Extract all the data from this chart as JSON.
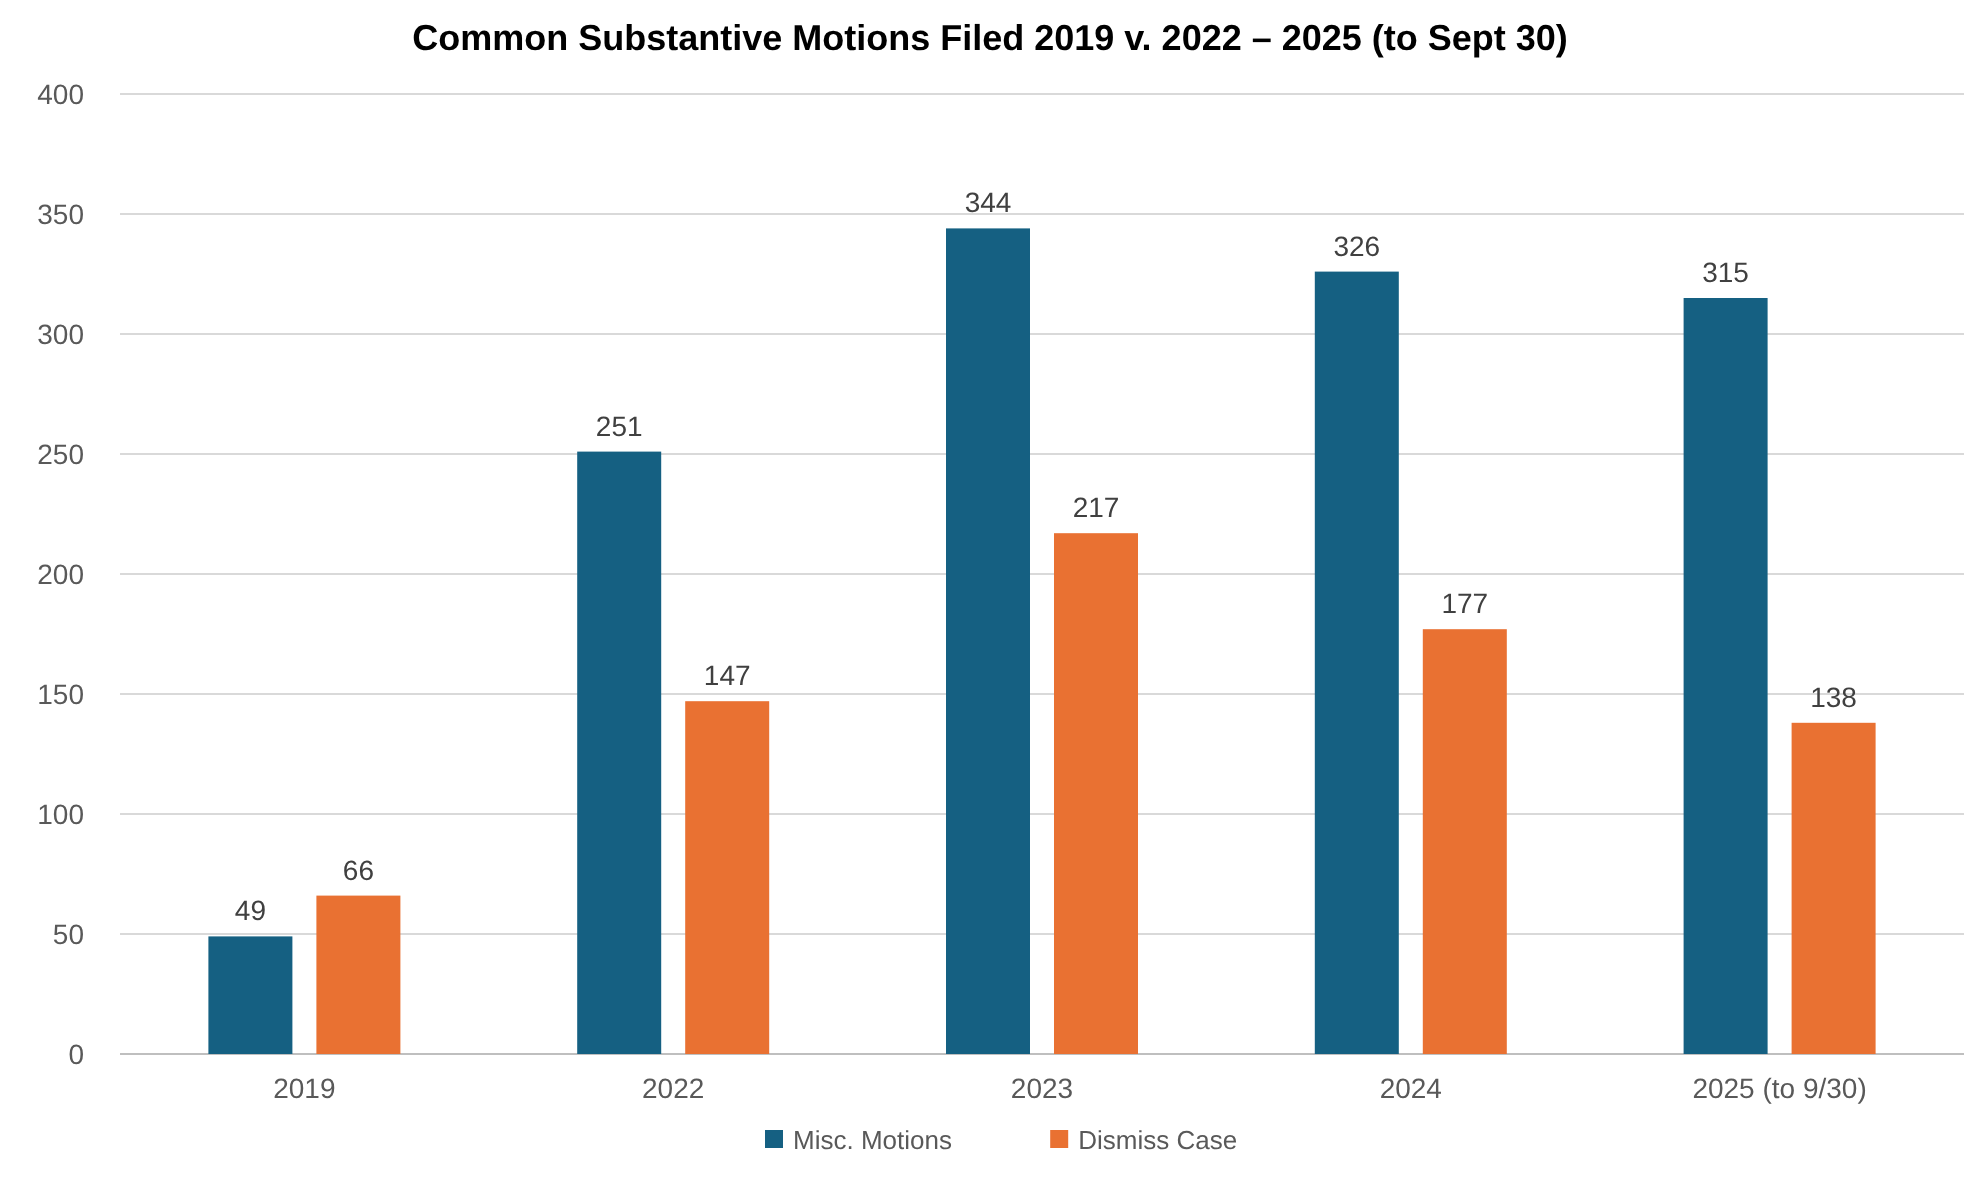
{
  "chart_data": {
    "type": "bar",
    "title": "Common Substantive Motions Filed 2019 v. 2022 – 2025 (to Sept 30)",
    "categories": [
      "2019",
      "2022",
      "2023",
      "2024",
      "2025 (to 9/30)"
    ],
    "series": [
      {
        "name": "Misc. Motions",
        "color": "#156082",
        "values": [
          49,
          251,
          344,
          326,
          315
        ]
      },
      {
        "name": "Dismiss Case",
        "color": "#e97132",
        "values": [
          66,
          147,
          217,
          177,
          138
        ]
      }
    ],
    "ylim": [
      0,
      400
    ],
    "yticks": [
      0,
      50,
      100,
      150,
      200,
      250,
      300,
      350,
      400
    ],
    "grid": "y",
    "legend": "bottom",
    "data_labels": true
  }
}
